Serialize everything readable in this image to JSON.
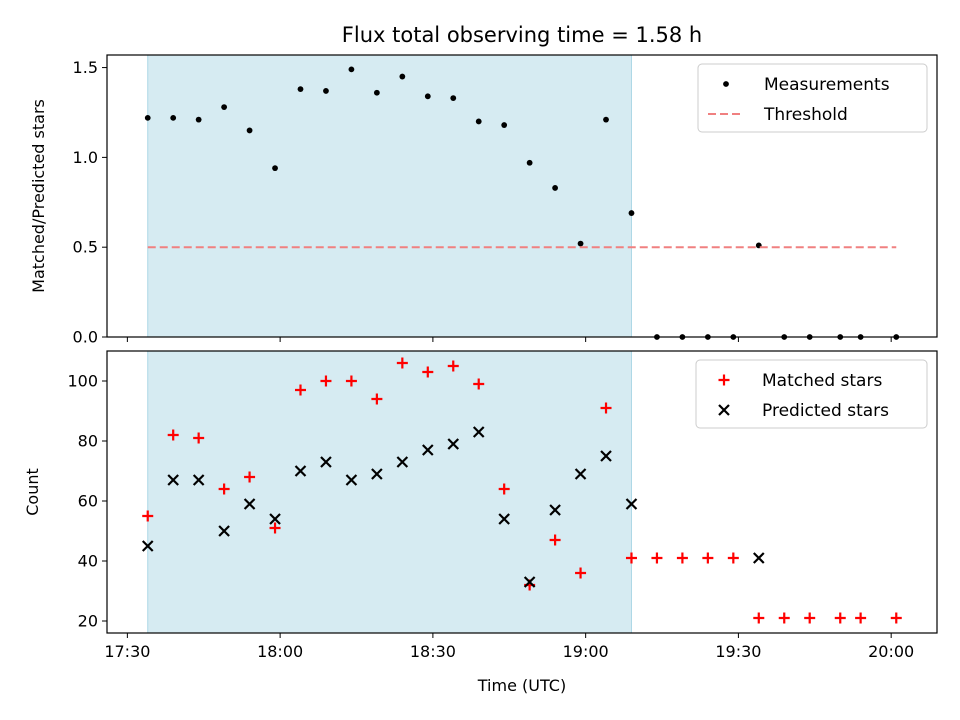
{
  "chart_data": {
    "type": "scatter",
    "title": "Flux total observing time = 1.58 h",
    "shaded_region": {
      "x_start": "17:34",
      "x_end": "19:09",
      "color": "#add8e6"
    },
    "x_axis": {
      "label": "Time (UTC)",
      "range": [
        "17:26",
        "20:09"
      ],
      "ticks": [
        "17:30",
        "18:00",
        "18:30",
        "19:00",
        "19:30",
        "20:00"
      ]
    },
    "panels": [
      {
        "id": "top",
        "ylabel": "Matched/Predicted stars",
        "ylim": [
          0.0,
          1.57
        ],
        "yticks": [
          "0.0",
          "0.5",
          "1.0",
          "1.5"
        ],
        "legend": {
          "placement": "upper right"
        },
        "series": [
          {
            "name": "Measurements",
            "marker": "dot",
            "color": "#000000",
            "points": [
              [
                "17:34",
                1.22
              ],
              [
                "17:39",
                1.22
              ],
              [
                "17:44",
                1.21
              ],
              [
                "17:49",
                1.28
              ],
              [
                "17:54",
                1.15
              ],
              [
                "17:59",
                0.94
              ],
              [
                "18:04",
                1.38
              ],
              [
                "18:09",
                1.37
              ],
              [
                "18:14",
                1.49
              ],
              [
                "18:19",
                1.36
              ],
              [
                "18:24",
                1.45
              ],
              [
                "18:29",
                1.34
              ],
              [
                "18:34",
                1.33
              ],
              [
                "18:39",
                1.2
              ],
              [
                "18:44",
                1.18
              ],
              [
                "18:49",
                0.97
              ],
              [
                "18:54",
                0.83
              ],
              [
                "18:59",
                0.52
              ],
              [
                "19:04",
                1.21
              ],
              [
                "19:09",
                0.69
              ],
              [
                "19:14",
                0.0
              ],
              [
                "19:19",
                0.0
              ],
              [
                "19:24",
                0.0
              ],
              [
                "19:29",
                0.0
              ],
              [
                "19:34",
                0.51
              ],
              [
                "19:39",
                0.0
              ],
              [
                "19:44",
                0.0
              ],
              [
                "19:50",
                0.0
              ],
              [
                "19:54",
                0.0
              ],
              [
                "20:01",
                0.0
              ]
            ]
          },
          {
            "name": "Threshold",
            "marker": "dashed-line",
            "color": "#f08080",
            "y": 0.5,
            "x_range": [
              "17:34",
              "20:01"
            ]
          }
        ]
      },
      {
        "id": "bottom",
        "ylabel": "Count",
        "ylim": [
          16,
          110
        ],
        "yticks": [
          "20",
          "40",
          "60",
          "80",
          "100"
        ],
        "legend": {
          "placement": "upper right"
        },
        "series": [
          {
            "name": "Matched stars",
            "marker": "plus",
            "color": "#ff0000",
            "points": [
              [
                "17:34",
                55
              ],
              [
                "17:39",
                82
              ],
              [
                "17:44",
                81
              ],
              [
                "17:49",
                64
              ],
              [
                "17:54",
                68
              ],
              [
                "17:59",
                51
              ],
              [
                "18:04",
                97
              ],
              [
                "18:09",
                100
              ],
              [
                "18:14",
                100
              ],
              [
                "18:19",
                94
              ],
              [
                "18:24",
                106
              ],
              [
                "18:29",
                103
              ],
              [
                "18:34",
                105
              ],
              [
                "18:39",
                99
              ],
              [
                "18:44",
                64
              ],
              [
                "18:49",
                32
              ],
              [
                "18:54",
                47
              ],
              [
                "18:59",
                36
              ],
              [
                "19:04",
                91
              ],
              [
                "19:09",
                41
              ],
              [
                "19:14",
                41
              ],
              [
                "19:19",
                41
              ],
              [
                "19:24",
                41
              ],
              [
                "19:29",
                41
              ],
              [
                "19:34",
                21
              ],
              [
                "19:39",
                21
              ],
              [
                "19:44",
                21
              ],
              [
                "19:50",
                21
              ],
              [
                "19:54",
                21
              ],
              [
                "20:01",
                21
              ]
            ]
          },
          {
            "name": "Predicted stars",
            "marker": "x",
            "color": "#000000",
            "points": [
              [
                "17:34",
                45
              ],
              [
                "17:39",
                67
              ],
              [
                "17:44",
                67
              ],
              [
                "17:49",
                50
              ],
              [
                "17:54",
                59
              ],
              [
                "17:59",
                54
              ],
              [
                "18:04",
                70
              ],
              [
                "18:09",
                73
              ],
              [
                "18:14",
                67
              ],
              [
                "18:19",
                69
              ],
              [
                "18:24",
                73
              ],
              [
                "18:29",
                77
              ],
              [
                "18:34",
                79
              ],
              [
                "18:39",
                83
              ],
              [
                "18:44",
                54
              ],
              [
                "18:49",
                33
              ],
              [
                "18:54",
                57
              ],
              [
                "18:59",
                69
              ],
              [
                "19:04",
                75
              ],
              [
                "19:09",
                59
              ],
              [
                "19:34",
                41
              ]
            ]
          }
        ]
      }
    ]
  }
}
